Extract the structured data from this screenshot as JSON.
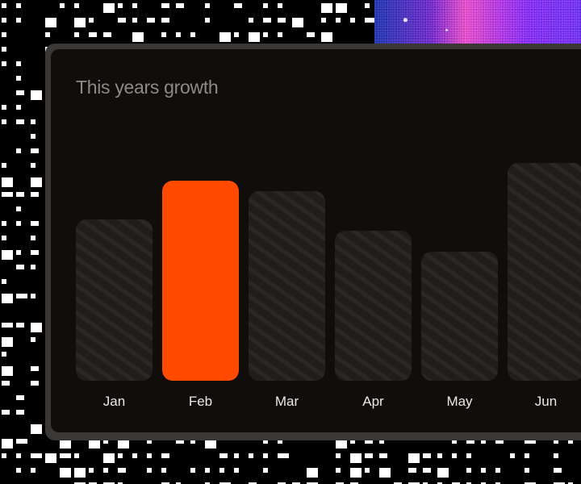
{
  "card": {
    "title": "This years growth"
  },
  "colors": {
    "highlight": "#ff4a00",
    "bar_fill": "#222020",
    "bar_stripe": "#2b2928",
    "card_bg": "#110d0b",
    "title_text": "#8d8a88",
    "label_text": "#ebe8e6"
  },
  "chart_data": {
    "type": "bar",
    "title": "This years growth",
    "categories": [
      "Jan",
      "Feb",
      "Mar",
      "Apr",
      "May",
      "Jun"
    ],
    "values": [
      200,
      248,
      235,
      186,
      160,
      270
    ],
    "highlighted": "Feb",
    "xlabel": "",
    "ylabel": "",
    "grid": false
  }
}
